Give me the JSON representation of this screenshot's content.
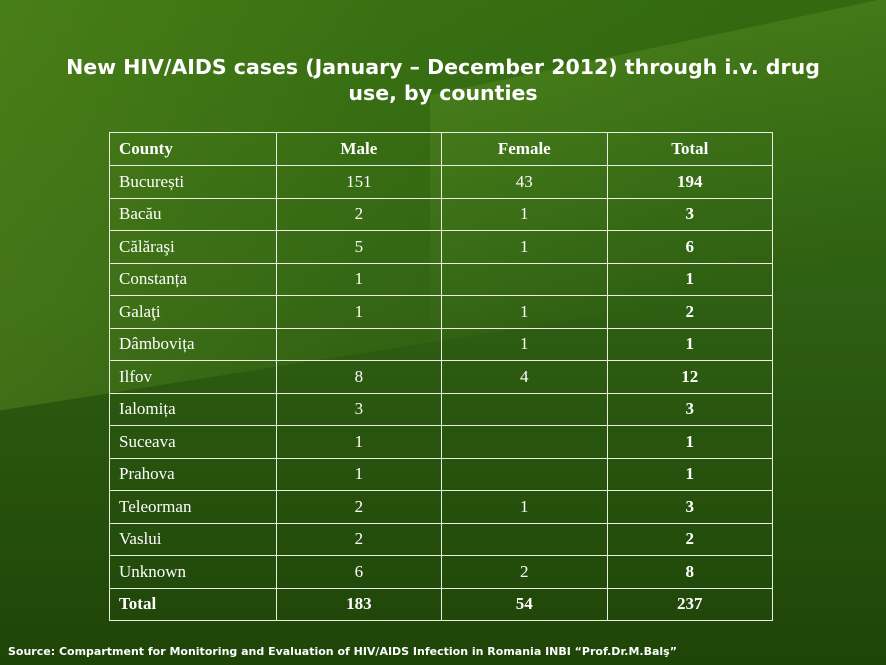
{
  "title": "New HIV/AIDS cases (January – December 2012) through i.v. drug use, by counties",
  "table": {
    "headers": [
      "County",
      "Male",
      "Female",
      "Total"
    ],
    "rows": [
      {
        "county": "București",
        "male": "151",
        "female": "43",
        "total": "194"
      },
      {
        "county": "Bacău",
        "male": "2",
        "female": "1",
        "total": "3"
      },
      {
        "county": "Călăraşi",
        "male": "5",
        "female": "1",
        "total": "6"
      },
      {
        "county": "Constanța",
        "male": "1",
        "female": "",
        "total": "1"
      },
      {
        "county": "Galaţi",
        "male": "1",
        "female": "1",
        "total": "2"
      },
      {
        "county": "Dâmbovița",
        "male": "",
        "female": "1",
        "total": "1"
      },
      {
        "county": "Ilfov",
        "male": "8",
        "female": "4",
        "total": "12"
      },
      {
        "county": "Ialomița",
        "male": "3",
        "female": "",
        "total": "3"
      },
      {
        "county": "Suceava",
        "male": "1",
        "female": "",
        "total": "1"
      },
      {
        "county": "Prahova",
        "male": "1",
        "female": "",
        "total": "1"
      },
      {
        "county": "Teleorman",
        "male": "2",
        "female": "1",
        "total": "3"
      },
      {
        "county": "Vaslui",
        "male": "2",
        "female": "",
        "total": "2"
      },
      {
        "county": "Unknown",
        "male": "6",
        "female": "2",
        "total": "8"
      }
    ],
    "total_row": {
      "county": "Total",
      "male": "183",
      "female": "54",
      "total": "237"
    }
  },
  "source": "Source: Compartment for Monitoring and Evaluation of HIV/AIDS Infection in Romania INBI “Prof.Dr.M.Balş”",
  "colors": {
    "background": "#2f5e12",
    "text": "#ffffff",
    "grid": "#e8efe0"
  }
}
